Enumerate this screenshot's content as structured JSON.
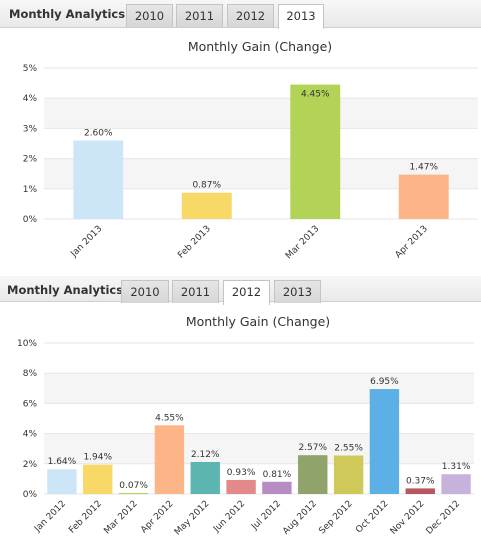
{
  "widget_top": {
    "header_title": "Monthly Analytics",
    "tabs": [
      {
        "label": "2010",
        "active": false
      },
      {
        "label": "2011",
        "active": false
      },
      {
        "label": "2012",
        "active": false
      },
      {
        "label": "2013",
        "active": true
      }
    ]
  },
  "widget_bottom": {
    "header_title": "Monthly Analytics",
    "tabs": [
      {
        "label": "2010",
        "active": false
      },
      {
        "label": "2011",
        "active": false
      },
      {
        "label": "2012",
        "active": true
      },
      {
        "label": "2013",
        "active": false
      }
    ]
  },
  "chart_data": [
    {
      "type": "bar",
      "title": "Monthly Gain (Change)",
      "xlabel": "",
      "ylabel": "",
      "ylim": [
        0,
        5
      ],
      "yticks": [
        0,
        1,
        2,
        3,
        4,
        5
      ],
      "ytick_labels": [
        "0%",
        "1%",
        "2%",
        "3%",
        "4%",
        "5%"
      ],
      "grid": "alternating horizontal bands",
      "categories": [
        "Jan 2013",
        "Feb 2013",
        "Mar 2013",
        "Apr 2013"
      ],
      "values": [
        2.6,
        0.87,
        4.45,
        1.47
      ],
      "data_labels": [
        "2.60%",
        "0.87%",
        "4.45%",
        "1.47%"
      ],
      "colors": [
        "#cde6f7",
        "#f8d866",
        "#b3d356",
        "#fdb587"
      ]
    },
    {
      "type": "bar",
      "title": "Monthly Gain (Change)",
      "xlabel": "",
      "ylabel": "",
      "ylim": [
        0,
        10
      ],
      "yticks": [
        0,
        2,
        4,
        6,
        8,
        10
      ],
      "ytick_labels": [
        "0%",
        "2%",
        "4%",
        "6%",
        "8%",
        "10%"
      ],
      "grid": "alternating horizontal bands",
      "categories": [
        "Jan 2012",
        "Feb 2012",
        "Mar 2012",
        "Apr 2012",
        "May 2012",
        "Jun 2012",
        "Jul 2012",
        "Aug 2012",
        "Sep 2012",
        "Oct 2012",
        "Nov 2012",
        "Dec 2012"
      ],
      "values": [
        1.64,
        1.94,
        0.07,
        4.55,
        2.12,
        0.93,
        0.81,
        2.57,
        2.55,
        6.95,
        0.37,
        1.31
      ],
      "data_labels": [
        "1.64%",
        "1.94%",
        "0.07%",
        "4.55%",
        "2.12%",
        "0.93%",
        "0.81%",
        "2.57%",
        "2.55%",
        "6.95%",
        "0.37%",
        "1.31%"
      ],
      "colors": [
        "#cde6f7",
        "#f8d866",
        "#b3d356",
        "#fdb587",
        "#5db5b1",
        "#e48989",
        "#b68cc2",
        "#8fa36a",
        "#cfc95a",
        "#5cb0e5",
        "#b8575f",
        "#c5b3dc"
      ]
    }
  ]
}
